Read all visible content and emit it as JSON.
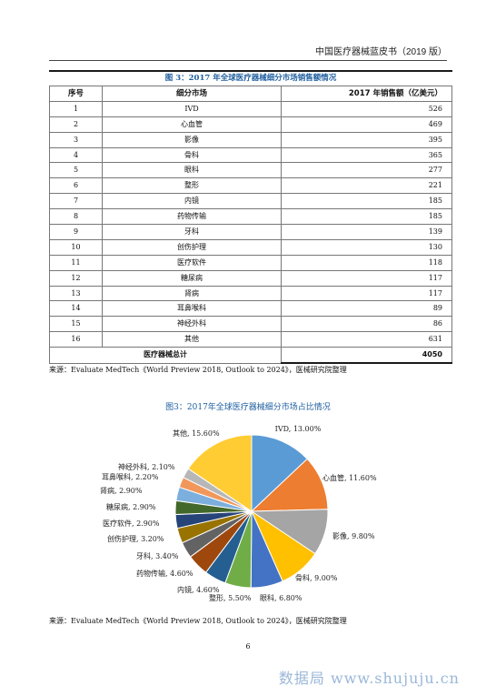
{
  "header": "中国医疗器械蓝皮书（2019 版）",
  "table": {
    "title": "图 3：2017 年全球医疗器械细分市场销售额情况",
    "headers": [
      "序号",
      "细分市场",
      "2017 年销售额（亿美元）"
    ],
    "rows": [
      [
        "1",
        "IVD",
        "526"
      ],
      [
        "2",
        "心血管",
        "469"
      ],
      [
        "3",
        "影像",
        "395"
      ],
      [
        "4",
        "骨科",
        "365"
      ],
      [
        "5",
        "眼科",
        "277"
      ],
      [
        "6",
        "整形",
        "221"
      ],
      [
        "7",
        "内镜",
        "185"
      ],
      [
        "8",
        "药物传输",
        "185"
      ],
      [
        "9",
        "牙科",
        "139"
      ],
      [
        "10",
        "创伤护理",
        "130"
      ],
      [
        "11",
        "医疗软件",
        "118"
      ],
      [
        "12",
        "糖尿病",
        "117"
      ],
      [
        "13",
        "肾病",
        "117"
      ],
      [
        "14",
        "耳鼻喉科",
        "89"
      ],
      [
        "15",
        "神经外科",
        "86"
      ],
      [
        "16",
        "其他",
        "631"
      ]
    ],
    "total_label": "医疗器械总计",
    "total_value": "4050"
  },
  "source1": "来源：Evaluate MedTech《World Preview 2018, Outlook to 2024》，医械研究院整理",
  "chart_data": {
    "type": "pie",
    "title": "图3：2017年全球医疗器械细分市场占比情况",
    "slices": [
      {
        "label": "IVD, 13.00%",
        "value": 13.0,
        "color": "#5b9bd5"
      },
      {
        "label": "心血管, 11.60%",
        "value": 11.6,
        "color": "#ed7d31"
      },
      {
        "label": "影像, 9.80%",
        "value": 9.8,
        "color": "#a5a5a5"
      },
      {
        "label": "骨科, 9.00%",
        "value": 9.0,
        "color": "#ffc000"
      },
      {
        "label": "眼科, 6.80%",
        "value": 6.8,
        "color": "#4472c4"
      },
      {
        "label": "整形, 5.50%",
        "value": 5.5,
        "color": "#70ad47"
      },
      {
        "label": "内镜, 4.60%",
        "value": 4.6,
        "color": "#255e91"
      },
      {
        "label": "药物传输, 4.60%",
        "value": 4.6,
        "color": "#9e480e"
      },
      {
        "label": "牙科, 3.40%",
        "value": 3.4,
        "color": "#636363"
      },
      {
        "label": "创伤护理, 3.20%",
        "value": 3.2,
        "color": "#997300"
      },
      {
        "label": "医疗软件, 2.90%",
        "value": 2.9,
        "color": "#264478"
      },
      {
        "label": "糖尿病, 2.90%",
        "value": 2.9,
        "color": "#43682b"
      },
      {
        "label": "肾病, 2.90%",
        "value": 2.9,
        "color": "#7cafdd"
      },
      {
        "label": "耳鼻喉科, 2.20%",
        "value": 2.2,
        "color": "#f1975a"
      },
      {
        "label": "神经外科, 2.10%",
        "value": 2.1,
        "color": "#b7b7b7"
      },
      {
        "label": "其他, 15.60%",
        "value": 15.6,
        "color": "#ffcd33"
      }
    ]
  },
  "source2": "来源：Evaluate MedTech《World Preview 2018, Outlook to 2024》，医械研究院整理",
  "page_number": "6",
  "watermark": "数据局 www.shujuju.cn"
}
